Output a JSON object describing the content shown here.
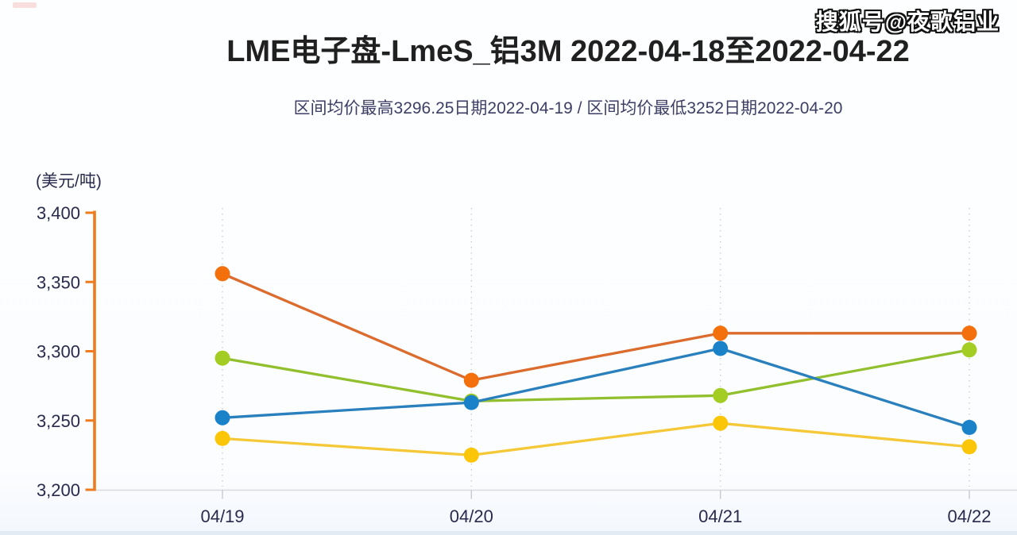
{
  "page": {
    "watermark": "搜狐号@夜歌铝业",
    "title": "LME电子盘-LmeS_铝3M 2022-04-18至2022-04-22",
    "subtitle": "区间均价最高3296.25日期2022-04-19 / 区间均价最低3252日期2022-04-20"
  },
  "chart_data": {
    "type": "line",
    "title": "LME电子盘-LmeS_铝3M 2022-04-18至2022-04-22",
    "subtitle": "区间均价最高3296.25日期2022-04-19 / 区间均价最低3252日期2022-04-20",
    "ylabel": "(美元/吨)",
    "xlabel": "",
    "categories": [
      "04/19",
      "04/20",
      "04/21",
      "04/22"
    ],
    "series": [
      {
        "name": "orange-series",
        "values": [
          3356,
          3279,
          3313,
          3313
        ],
        "marker_color": "#f3700d",
        "line_color": "#db6c2e"
      },
      {
        "name": "green-series",
        "values": [
          3295,
          3264,
          3268,
          3301
        ],
        "marker_color": "#a4cd24",
        "line_color": "#92bf2d"
      },
      {
        "name": "blue-series",
        "values": [
          3252,
          3263,
          3302,
          3245
        ],
        "marker_color": "#1a82c8",
        "line_color": "#2a80bd"
      },
      {
        "name": "yellow-series",
        "values": [
          3237,
          3225,
          3248,
          3231
        ],
        "marker_color": "#fcc608",
        "line_color": "#f5c838"
      }
    ],
    "ylim": [
      3200,
      3400
    ],
    "yticks": [
      3400,
      3350,
      3300,
      3250,
      3200
    ],
    "ytick_labels": [
      "3,400",
      "3,350",
      "3,300",
      "3,250",
      "3,200"
    ],
    "grid": false,
    "legend_position": "none",
    "layout_hints": {
      "guide_lines": "dotted vertical line at each category",
      "y_axis_color": "#ee7b1e",
      "x_axis_color": "#d8dade",
      "tick_text_color": "#2a2a4c"
    }
  }
}
